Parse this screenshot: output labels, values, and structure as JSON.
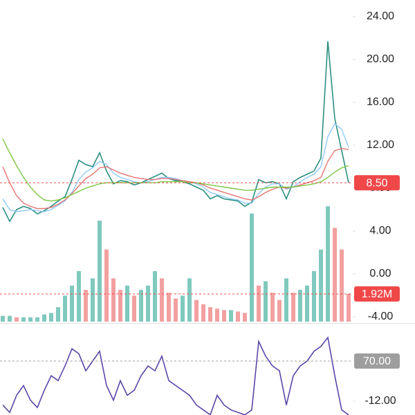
{
  "chart_data": [
    {
      "type": "line",
      "ylim": [
        -4.45,
        25.55
      ],
      "yticks": [
        {
          "value": 24,
          "label": "24.00"
        },
        {
          "value": 20,
          "label": "20.00"
        },
        {
          "value": 16,
          "label": "16.00"
        },
        {
          "value": 12,
          "label": "12.00"
        },
        {
          "value": 8,
          "label": "8.00"
        },
        {
          "value": 4,
          "label": "4.00"
        },
        {
          "value": 0,
          "label": "0.00"
        },
        {
          "value": -4,
          "label": "-4.00"
        }
      ],
      "series": [
        {
          "color": "#2a8f7f",
          "values": [
            6.2,
            4.9,
            6.0,
            6.3,
            6.1,
            5.6,
            5.9,
            6.3,
            6.8,
            7.2,
            8.8,
            10.6,
            10.2,
            10.0,
            11.3,
            9.6,
            8.4,
            8.7,
            8.6,
            8.3,
            8.5,
            8.8,
            9.1,
            9.4,
            8.9,
            8.7,
            8.6,
            8.4,
            8.1,
            7.8,
            7.0,
            7.3,
            7.0,
            6.9,
            6.8,
            6.3,
            6.7,
            8.8,
            8.5,
            8.6,
            8.4,
            7.0,
            8.6,
            9.0,
            9.3,
            9.6,
            10.8,
            21.7,
            14.5,
            11.5,
            8.5
          ]
        },
        {
          "color": "#90caf9",
          "values": [
            7.0,
            6.0,
            5.8,
            5.9,
            6.0,
            5.9,
            5.8,
            6.0,
            6.4,
            6.8,
            7.6,
            8.8,
            9.5,
            9.9,
            10.5,
            10.2,
            9.4,
            9.0,
            8.8,
            8.6,
            8.5,
            8.6,
            8.8,
            9.0,
            9.0,
            8.9,
            8.7,
            8.6,
            8.4,
            8.1,
            7.6,
            7.4,
            7.2,
            7.0,
            6.9,
            6.6,
            6.6,
            7.5,
            8.1,
            8.4,
            8.4,
            7.9,
            8.1,
            8.6,
            9.0,
            9.3,
            10.0,
            12.8,
            14.0,
            13.5,
            11.8
          ]
        },
        {
          "color": "#e57373",
          "values": [
            10.0,
            8.5,
            7.3,
            6.6,
            6.3,
            6.1,
            6.1,
            6.2,
            6.5,
            6.9,
            7.5,
            8.2,
            8.9,
            9.3,
            9.9,
            10.0,
            9.7,
            9.4,
            9.2,
            9.0,
            8.9,
            8.8,
            8.8,
            8.9,
            8.9,
            8.8,
            8.7,
            8.6,
            8.5,
            8.3,
            8.0,
            7.8,
            7.6,
            7.4,
            7.2,
            7.0,
            6.9,
            7.2,
            7.6,
            7.9,
            8.1,
            8.0,
            8.1,
            8.3,
            8.5,
            8.7,
            9.0,
            10.5,
            11.5,
            11.7,
            11.6
          ]
        },
        {
          "color": "#7cc644",
          "values": [
            12.6,
            11.3,
            10.1,
            9.0,
            8.1,
            7.4,
            6.9,
            6.8,
            6.9,
            7.1,
            7.4,
            7.7,
            8.0,
            8.2,
            8.4,
            8.5,
            8.5,
            8.5,
            8.5,
            8.5,
            8.5,
            8.5,
            8.5,
            8.6,
            8.6,
            8.6,
            8.6,
            8.5,
            8.5,
            8.4,
            8.3,
            8.2,
            8.1,
            8.0,
            7.9,
            7.8,
            7.8,
            7.9,
            8.0,
            8.1,
            8.1,
            8.1,
            8.1,
            8.2,
            8.3,
            8.4,
            8.6,
            9.0,
            9.5,
            9.9,
            10.1
          ]
        }
      ],
      "marker": {
        "value": 8.5,
        "label": "8.50",
        "color": "#f04848"
      }
    },
    {
      "type": "bar",
      "ylim": [
        0,
        22.3
      ],
      "up_color": "#7fc9bd",
      "down_color": "#f2a0a0",
      "values": [
        0.4,
        0.4,
        0.3,
        0.3,
        0.3,
        0.3,
        0.5,
        0.6,
        1.0,
        1.8,
        2.5,
        3.5,
        2.2,
        3.0,
        7.0,
        5.0,
        3.0,
        2.2,
        2.5,
        1.8,
        2.2,
        2.5,
        3.5,
        3.0,
        2.0,
        1.6,
        1.8,
        3.0,
        1.5,
        1.2,
        1.0,
        0.9,
        0.8,
        0.8,
        0.7,
        0.6,
        7.5,
        2.5,
        2.8,
        2.0,
        1.5,
        3.0,
        2.0,
        2.2,
        2.5,
        3.5,
        5.0,
        8.0,
        6.5,
        5.0,
        1.92
      ],
      "marker": {
        "value": 1.92,
        "label": "1.92M",
        "color": "#f04848"
      }
    },
    {
      "type": "line",
      "ylim": [
        -40.3,
        143.5
      ],
      "yticks": [
        {
          "value": -12,
          "label": "-12.00"
        }
      ],
      "series": [
        {
          "color": "#5b44a8",
          "values": [
            -20,
            -35,
            0,
            20,
            -10,
            -25,
            10,
            40,
            30,
            60,
            95,
            85,
            50,
            70,
            90,
            20,
            -10,
            30,
            0,
            10,
            40,
            60,
            50,
            80,
            30,
            20,
            10,
            0,
            -20,
            -30,
            -40,
            0,
            -20,
            -30,
            -35,
            -40,
            -30,
            110,
            80,
            60,
            50,
            -20,
            40,
            60,
            70,
            90,
            100,
            118,
            40,
            -30,
            -40
          ]
        }
      ],
      "marker": {
        "value": 70,
        "label": "70.00",
        "color": "#9e9e9e"
      }
    }
  ]
}
